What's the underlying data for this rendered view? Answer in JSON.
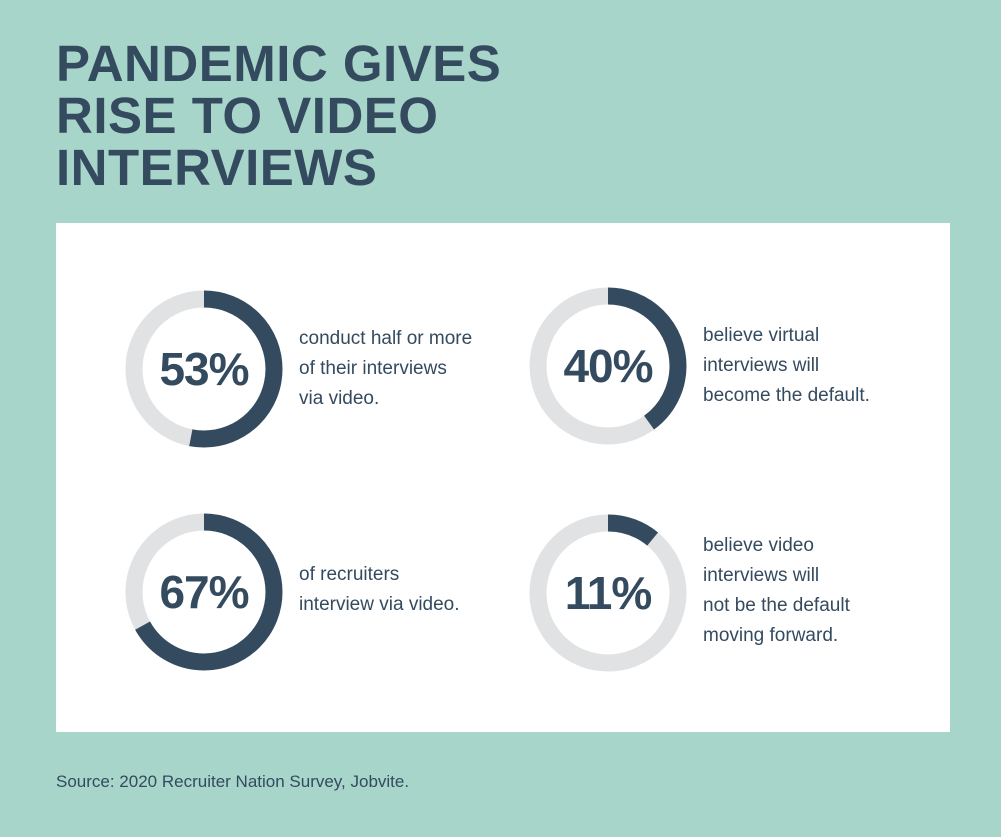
{
  "title": {
    "lines": [
      "PANDEMIC GIVES",
      "RISE TO VIDEO",
      "INTERVIEWS"
    ]
  },
  "source": "Source: 2020 Recruiter Nation Survey, Jobvite.",
  "colors": {
    "background": "#a8d5c9",
    "card": "#ffffff",
    "accent": "#344a5f",
    "track": "#e1e2e3"
  },
  "chart_data": [
    {
      "type": "pie",
      "label": "53%",
      "values": [
        53,
        47
      ],
      "description": [
        "conduct half or more",
        "of their interviews",
        "via video."
      ]
    },
    {
      "type": "pie",
      "label": "40%",
      "values": [
        40,
        60
      ],
      "description": [
        "believe virtual",
        "interviews will",
        "become the default."
      ]
    },
    {
      "type": "pie",
      "label": "67%",
      "values": [
        67,
        33
      ],
      "description": [
        "of recruiters",
        "interview via video."
      ]
    },
    {
      "type": "pie",
      "label": "11%",
      "values": [
        11,
        89
      ],
      "description": [
        "believe video",
        "interviews will",
        "not be the default",
        "moving forward."
      ]
    }
  ]
}
